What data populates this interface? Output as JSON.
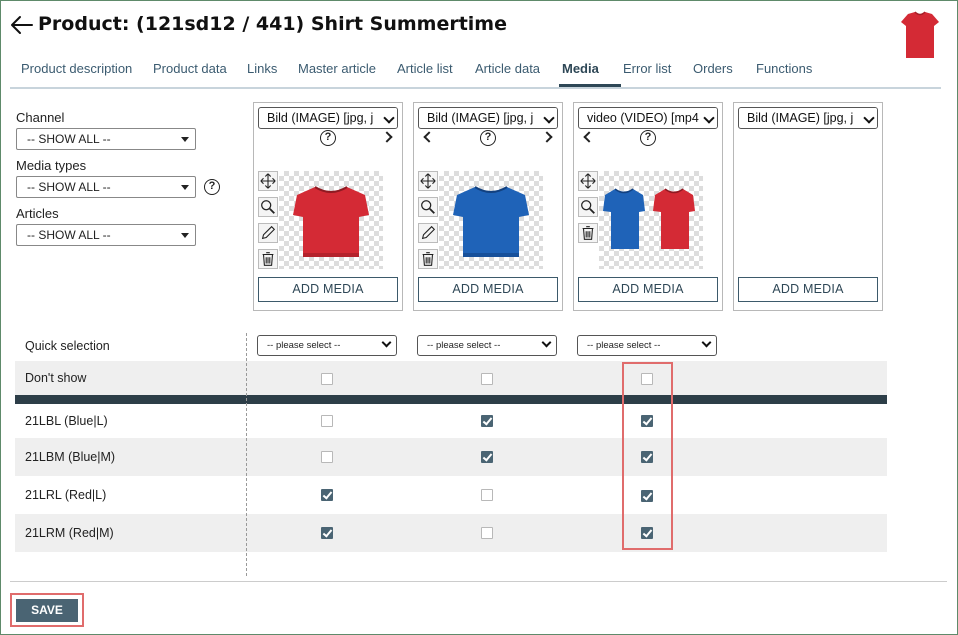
{
  "header": {
    "title": "Product: (121sd12 / 441) Shirt Summertime",
    "back_icon": "arrow-left-icon"
  },
  "tabs": [
    {
      "label": "Product description"
    },
    {
      "label": "Product data"
    },
    {
      "label": "Links"
    },
    {
      "label": "Master article"
    },
    {
      "label": "Article list"
    },
    {
      "label": "Article data"
    },
    {
      "label": "Media",
      "active": true
    },
    {
      "label": "Error list"
    },
    {
      "label": "Orders"
    },
    {
      "label": "Functions"
    }
  ],
  "filters": {
    "channel_label": "Channel",
    "channel_value": "-- SHOW ALL --",
    "media_types_label": "Media types",
    "media_types_value": "-- SHOW ALL --",
    "articles_label": "Articles",
    "articles_value": "-- SHOW ALL --"
  },
  "media_cards": [
    {
      "type": "Bild (IMAGE)   [jpg, j",
      "nav_left": false,
      "nav_right": true,
      "image": "red shirt",
      "add_label": "ADD MEDIA"
    },
    {
      "type": "Bild (IMAGE)   [jpg, j",
      "nav_left": true,
      "nav_right": true,
      "image": "blue shirt",
      "add_label": "ADD MEDIA"
    },
    {
      "type": "video (VIDEO)   [mp4",
      "nav_left": true,
      "nav_right": false,
      "image": "blue and red shirts",
      "add_label": "ADD MEDIA"
    },
    {
      "type": "Bild (IMAGE)   [jpg, j",
      "nav_left": false,
      "nav_right": false,
      "image": "",
      "add_label": "ADD MEDIA"
    }
  ],
  "grid": {
    "quick_selection_label": "Quick selection",
    "please_select": "-- please select --",
    "dont_show_label": "Don't show",
    "dont_show": [
      false,
      false,
      false
    ],
    "rows": [
      {
        "label": "21LBL (Blue|L)",
        "checks": [
          false,
          true,
          true
        ]
      },
      {
        "label": "21LBM (Blue|M)",
        "checks": [
          false,
          true,
          true
        ]
      },
      {
        "label": "21LRL (Red|L)",
        "checks": [
          true,
          false,
          true
        ]
      },
      {
        "label": "21LRM (Red|M)",
        "checks": [
          true,
          false,
          true
        ]
      }
    ]
  },
  "footer": {
    "save_label": "SAVE"
  },
  "colors": {
    "accent": "#4a6473",
    "highlight": "#e06c6c",
    "shirt_red": "#d42a35",
    "shirt_blue": "#1f63b8"
  }
}
